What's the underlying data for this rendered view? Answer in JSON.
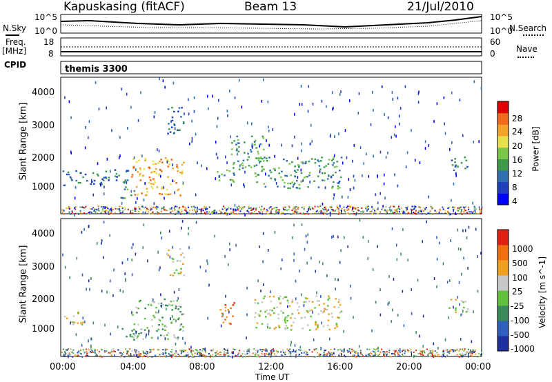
{
  "header": {
    "station": "Kapuskasing (fitACF)",
    "beam": "Beam 13",
    "date": "21/Jul/2010"
  },
  "noise_panel": {
    "left_label": "N.Sky",
    "right_label": "N.Search",
    "left_ticks": [
      "10^5",
      "10^0"
    ],
    "right_ticks": [
      "10^5",
      "10^0"
    ]
  },
  "freq_panel": {
    "left_label_1": "Freq.",
    "left_label_2": "[MHz]",
    "right_label": "Nave",
    "left_ticks": [
      "18",
      "8"
    ],
    "right_ticks": [
      "60",
      "0"
    ]
  },
  "cpid_panel": {
    "label": "CPID",
    "value": "themis 3300"
  },
  "chart_data": [
    {
      "type": "heatmap",
      "parameter": "Power",
      "ylabel": "Slant Range [km]",
      "ylim": [
        180,
        4500
      ],
      "yticks": [
        1000,
        2000,
        3000,
        4000
      ],
      "xlim": [
        0,
        24
      ],
      "colorbar": {
        "label": "Power [dB]",
        "ticks": [
          "28",
          "24",
          "20",
          "16",
          "12",
          "8",
          "4"
        ],
        "colors": [
          "#0000ff",
          "#1f3fbf",
          "#2e6fb0",
          "#3c9a4a",
          "#7ac74a",
          "#e8e04a",
          "#f3a32a",
          "#ef6a1a",
          "#e00000"
        ]
      },
      "echo_regions": [
        {
          "t": [
            0.0,
            4.0
          ],
          "r": [
            1100,
            1600
          ],
          "level": 2
        },
        {
          "t": [
            3.4,
            4.2
          ],
          "r": [
            650,
            1100
          ],
          "level": 3
        },
        {
          "t": [
            4.0,
            7.0
          ],
          "r": [
            750,
            2000
          ],
          "level": 6
        },
        {
          "t": [
            6.0,
            7.0
          ],
          "r": [
            2700,
            3600
          ],
          "level": 2
        },
        {
          "t": [
            8.9,
            9.9
          ],
          "r": [
            1100,
            1700
          ],
          "level": 3
        },
        {
          "t": [
            9.7,
            11.6
          ],
          "r": [
            1600,
            2700
          ],
          "level": 3
        },
        {
          "t": [
            11.0,
            16.0
          ],
          "r": [
            1000,
            2000
          ],
          "level": 3
        },
        {
          "t": [
            22.1,
            23.2
          ],
          "r": [
            1500,
            2000
          ],
          "level": 2
        }
      ]
    },
    {
      "type": "heatmap",
      "parameter": "Velocity",
      "ylabel": "Slant Range [km]",
      "xlabel": "Time UT",
      "ylim": [
        180,
        4500
      ],
      "yticks": [
        1000,
        2000,
        3000,
        4000
      ],
      "xlim": [
        0,
        24
      ],
      "xticks": [
        "00:00",
        "04:00",
        "08:00",
        "12:00",
        "16:00",
        "20:00",
        "00:00"
      ],
      "colorbar": {
        "label": "Velocity [m s^-1]",
        "ticks": [
          "1000",
          "500",
          "100",
          "25",
          "-25",
          "-100",
          "-500",
          "-1000"
        ],
        "colors": [
          "#1f2fa0",
          "#2f5fbf",
          "#3a8a5a",
          "#5fc23a",
          "#c8c8c8",
          "#f0a020",
          "#f07010",
          "#e02010"
        ]
      },
      "echo_regions": [
        {
          "t": [
            0.0,
            1.5
          ],
          "r": [
            1200,
            1600
          ],
          "level": 4
        },
        {
          "t": [
            3.4,
            4.2
          ],
          "r": [
            700,
            1100
          ],
          "level": 3
        },
        {
          "t": [
            4.0,
            7.0
          ],
          "r": [
            750,
            2000
          ],
          "level": 3
        },
        {
          "t": [
            6.0,
            7.0
          ],
          "r": [
            2700,
            3600
          ],
          "level": 4
        },
        {
          "t": [
            9.0,
            9.9
          ],
          "r": [
            1200,
            1900
          ],
          "level": 6
        },
        {
          "t": [
            11.0,
            16.0
          ],
          "r": [
            1000,
            2100
          ],
          "level": 4
        },
        {
          "t": [
            22.1,
            23.2
          ],
          "r": [
            1500,
            2000
          ],
          "level": 4
        }
      ]
    }
  ]
}
